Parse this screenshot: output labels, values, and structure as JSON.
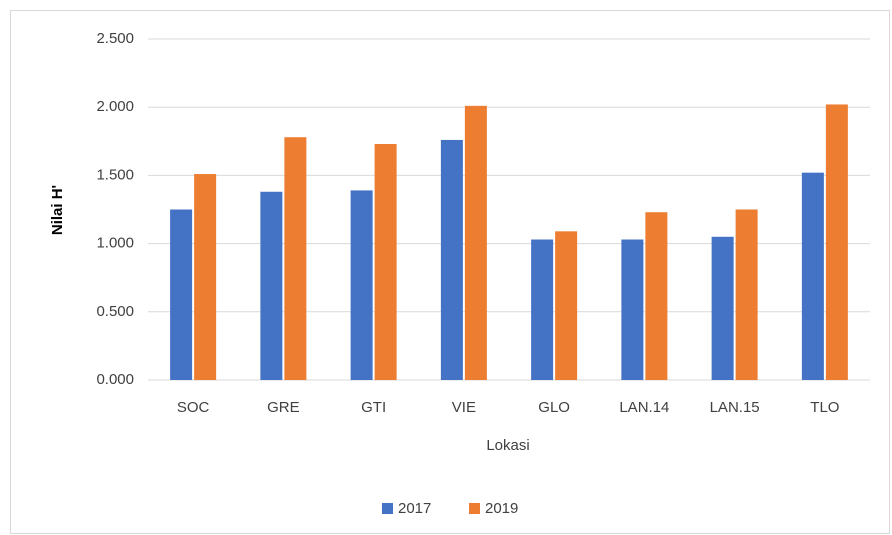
{
  "chart_data": {
    "type": "bar",
    "categories": [
      "SOC",
      "GRE",
      "GTI",
      "VIE",
      "GLO",
      "LAN.14",
      "LAN.15",
      "TLO"
    ],
    "series": [
      {
        "name": "2017",
        "color": "#4472c4",
        "values": [
          1.25,
          1.38,
          1.39,
          1.76,
          1.03,
          1.03,
          1.05,
          1.52
        ]
      },
      {
        "name": "2019",
        "color": "#ed7d31",
        "values": [
          1.51,
          1.78,
          1.73,
          2.01,
          1.09,
          1.23,
          1.25,
          2.02
        ]
      }
    ],
    "xlabel": "Lokasi",
    "ylabel": "Nilai H'",
    "ylim": [
      0,
      2.5
    ],
    "yticks": [
      {
        "value": 0,
        "label": "0.000"
      },
      {
        "value": 0.5,
        "label": "0.500"
      },
      {
        "value": 1,
        "label": "1.000"
      },
      {
        "value": 1.5,
        "label": "1.500"
      },
      {
        "value": 2,
        "label": "2.000"
      },
      {
        "value": 2.5,
        "label": "2.500"
      }
    ],
    "grid": true,
    "legend": "bottom"
  }
}
